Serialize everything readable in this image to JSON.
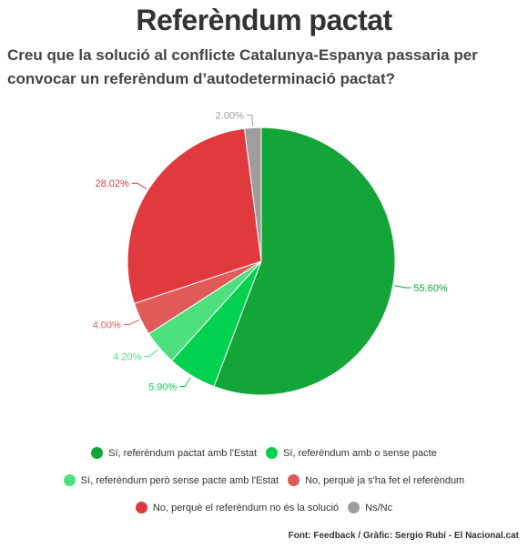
{
  "title": "Referèndum pactat",
  "subtitle": "Creu que la solució al conflicte Catalunya-Espanya passaria per convocar un referèndum d’autodeterminació pactat?",
  "source": "Font: Feedback / Gràfic: Sergio Rubí - El Nacional.cat",
  "chart_data": {
    "type": "pie",
    "series": [
      {
        "name": "Sí, referèndum pactat amb l'Estat",
        "value": 55.6,
        "label": "55.60%",
        "color": "#13a538"
      },
      {
        "name": "Sí, referèndum amb o sense pacte",
        "value": 5.9,
        "label": "5.90%",
        "color": "#00d14e"
      },
      {
        "name": "Sí, referèndum però sense pacte amb l'Estat",
        "value": 4.2,
        "label": "4.20%",
        "color": "#4ee07f"
      },
      {
        "name": "No, perquè ja s'ha fet el referèndum",
        "value": 4.0,
        "label": "4.00%",
        "color": "#e05a5a"
      },
      {
        "name": "No, perquè el referèndum no és la solució",
        "value": 28.02,
        "label": "28.02%",
        "color": "#e03a3e"
      },
      {
        "name": "Ns/Nc",
        "value": 2.0,
        "label": "2.00%",
        "color": "#9e9e9e"
      }
    ],
    "legend_placement": "bottom"
  }
}
